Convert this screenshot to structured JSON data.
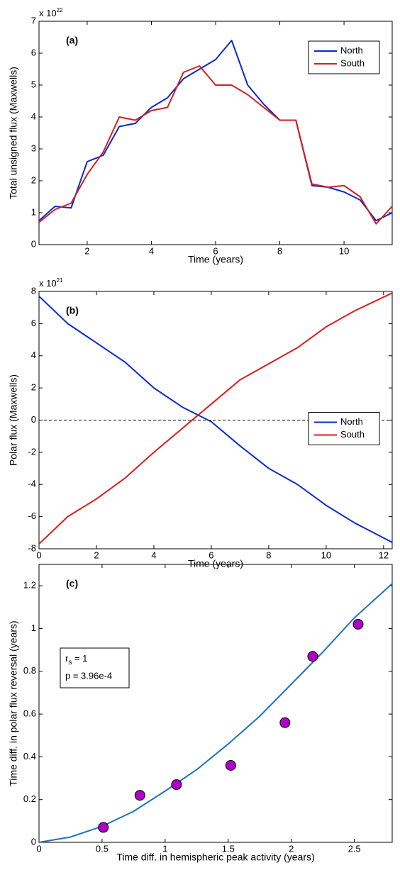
{
  "chart_data": [
    {
      "type": "line",
      "label": "(a)",
      "xlabel": "Time (years)",
      "ylabel": "Total unsigned flux (Maxwells)",
      "y_multiplier": "x 10",
      "y_exponent": "22",
      "xlim": [
        0.5,
        11.5
      ],
      "xticks": [
        2,
        4,
        6,
        8,
        10
      ],
      "ylim": [
        0,
        7
      ],
      "yticks": [
        0,
        1,
        2,
        3,
        4,
        5,
        6,
        7
      ],
      "legend": "upper right",
      "x": [
        0.5,
        1,
        1.5,
        2,
        2.5,
        3,
        3.5,
        4,
        4.5,
        5,
        5.5,
        6,
        6.5,
        7,
        7.5,
        8,
        8.5,
        9,
        9.5,
        10,
        10.5,
        11,
        11.5
      ],
      "series": [
        {
          "name": "North",
          "color": "#0a2ad0",
          "values": [
            0.75,
            1.2,
            1.15,
            2.6,
            2.8,
            3.7,
            3.8,
            4.3,
            4.6,
            5.2,
            5.5,
            5.8,
            6.4,
            5.0,
            4.4,
            3.9,
            3.9,
            1.85,
            1.8,
            1.65,
            1.4,
            0.75,
            1.0
          ]
        },
        {
          "name": "South",
          "color": "#d81e1e",
          "values": [
            0.7,
            1.1,
            1.3,
            2.2,
            2.9,
            4.0,
            3.9,
            4.2,
            4.3,
            5.4,
            5.6,
            5.0,
            5.0,
            4.7,
            4.3,
            3.9,
            3.9,
            1.9,
            1.8,
            1.85,
            1.5,
            0.65,
            1.2
          ]
        }
      ]
    },
    {
      "type": "line",
      "label": "(b)",
      "xlabel": "Time (years)",
      "ylabel": "Polar flux (Maxwells)",
      "y_multiplier": "x 10",
      "y_exponent": "21",
      "xlim": [
        0,
        12.3
      ],
      "xticks": [
        0,
        2,
        4,
        6,
        8,
        10,
        12
      ],
      "ylim": [
        -8,
        8
      ],
      "yticks": [
        -8,
        -6,
        -4,
        -2,
        0,
        2,
        4,
        6,
        8
      ],
      "legend": "center right",
      "zero_line": true,
      "x": [
        0,
        1,
        2,
        3,
        4,
        5,
        6,
        7,
        8,
        9,
        10,
        11,
        12.3
      ],
      "series": [
        {
          "name": "North",
          "color": "#0a2ad0",
          "values": [
            7.7,
            6.0,
            4.8,
            3.6,
            2.0,
            0.8,
            -0.1,
            -1.6,
            -3.0,
            -4.0,
            -5.3,
            -6.4,
            -7.6
          ]
        },
        {
          "name": "South",
          "color": "#d81e1e",
          "values": [
            -7.7,
            -6.0,
            -4.9,
            -3.6,
            -2.0,
            -0.5,
            1.0,
            2.5,
            3.5,
            4.5,
            5.8,
            6.8,
            7.9
          ]
        }
      ]
    },
    {
      "type": "scatter",
      "label": "(c)",
      "xlabel": "Time diff. in hemispheric peak activity (years)",
      "ylabel": "Time diff. in polar flux reversal (years)",
      "xlim": [
        0,
        2.8
      ],
      "xticks": [
        0,
        0.5,
        1,
        1.5,
        2,
        2.5
      ],
      "ylim": [
        0,
        1.3
      ],
      "yticks": [
        0,
        0.2,
        0.4,
        0.6,
        0.8,
        1,
        1.2
      ],
      "stat_symbol": "r",
      "stat_subscript": "s",
      "stat_value": " = 1",
      "p_text": "p = 3.96e-4",
      "points": {
        "color": "#b000c8",
        "x": [
          0.51,
          0.8,
          1.09,
          1.52,
          1.95,
          2.17,
          2.53
        ],
        "values": [
          0.07,
          0.22,
          0.27,
          0.36,
          0.56,
          0.87,
          1.02
        ]
      },
      "fit": {
        "color": "#1a72bd",
        "x": [
          0,
          0.25,
          0.5,
          0.75,
          1,
          1.25,
          1.5,
          1.75,
          2,
          2.25,
          2.5,
          2.8
        ],
        "values": [
          0,
          0.025,
          0.075,
          0.145,
          0.24,
          0.34,
          0.46,
          0.59,
          0.74,
          0.89,
          1.05,
          1.21
        ]
      }
    }
  ]
}
